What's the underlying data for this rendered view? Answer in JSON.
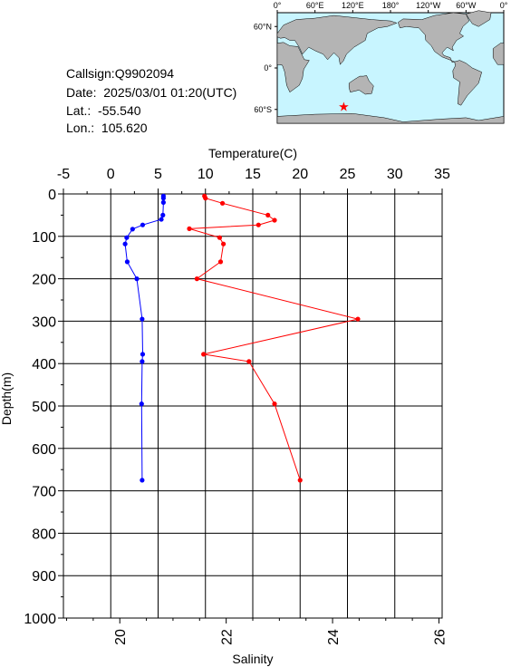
{
  "info": {
    "callsign_label": "Callsign:",
    "callsign": "Q9902094",
    "date_label": "Date:",
    "date": "2025/03/01 01:20(UTC)",
    "lat_label": "Lat.:",
    "lat": "-55.540",
    "lon_label": "Lon.:",
    "lon": "105.620"
  },
  "map": {
    "top_tick_labels": [
      "0°",
      "60°E",
      "120°E",
      "180°",
      "120°W",
      "60°W",
      "0°"
    ],
    "left_tick_labels": [
      "60°N",
      "0°",
      "60°S"
    ],
    "ocean_color": "#c8f5ff",
    "land_color": "#b4b4b4",
    "marker": {
      "lon": 105.62,
      "lat": -55.54,
      "symbol": "star-icon",
      "color": "#ff0000"
    }
  },
  "chart_data": {
    "type": "line",
    "y_axis": {
      "label": "Depth(m)",
      "range": [
        0,
        1000
      ],
      "reversed": true,
      "ticks": [
        0,
        100,
        200,
        300,
        400,
        500,
        600,
        700,
        800,
        900,
        1000
      ],
      "tick_labels": [
        "0",
        "100",
        "200",
        "300",
        "400",
        "500",
        "600",
        "700",
        "800",
        "900",
        "1000"
      ]
    },
    "temperature_axis": {
      "label": "Temperature(C)",
      "position": "top",
      "range": [
        -5,
        35
      ],
      "ticks": [
        -5,
        0,
        5,
        10,
        15,
        20,
        25,
        30,
        35
      ],
      "tick_labels": [
        "-5",
        "0",
        "5",
        "10",
        "15",
        "20",
        "25",
        "30",
        "35"
      ]
    },
    "salinity_axis": {
      "label": "Salinity",
      "position": "bottom",
      "range": [
        18.94,
        26.06
      ],
      "ticks": [
        20,
        22,
        24,
        26
      ],
      "tick_labels": [
        "20",
        "22",
        "24",
        "26"
      ]
    },
    "grid": true,
    "series": [
      {
        "axis": "temperature",
        "color": "#ff0000",
        "points": [
          {
            "depth": 5,
            "value": 9.9
          },
          {
            "depth": 10,
            "value": 10.0
          },
          {
            "depth": 22,
            "value": 11.8
          },
          {
            "depth": 50,
            "value": 16.6
          },
          {
            "depth": 62,
            "value": 17.3
          },
          {
            "depth": 73,
            "value": 15.6
          },
          {
            "depth": 82,
            "value": 8.3
          },
          {
            "depth": 103,
            "value": 11.5
          },
          {
            "depth": 118,
            "value": 11.9
          },
          {
            "depth": 160,
            "value": 11.6
          },
          {
            "depth": 200,
            "value": 9.1
          },
          {
            "depth": 295,
            "value": 26.1
          },
          {
            "depth": 378,
            "value": 9.8
          },
          {
            "depth": 395,
            "value": 14.6
          },
          {
            "depth": 495,
            "value": 17.3
          },
          {
            "depth": 675,
            "value": 20.0
          }
        ]
      },
      {
        "axis": "salinity",
        "color": "#0000ff",
        "points": [
          {
            "depth": 5,
            "value": 20.82
          },
          {
            "depth": 10,
            "value": 20.82
          },
          {
            "depth": 20,
            "value": 20.82
          },
          {
            "depth": 50,
            "value": 20.81
          },
          {
            "depth": 60,
            "value": 20.78
          },
          {
            "depth": 73,
            "value": 20.43
          },
          {
            "depth": 83,
            "value": 20.24
          },
          {
            "depth": 103,
            "value": 20.13
          },
          {
            "depth": 118,
            "value": 20.1
          },
          {
            "depth": 160,
            "value": 20.14
          },
          {
            "depth": 200,
            "value": 20.32
          },
          {
            "depth": 295,
            "value": 20.42
          },
          {
            "depth": 378,
            "value": 20.43
          },
          {
            "depth": 395,
            "value": 20.42
          },
          {
            "depth": 495,
            "value": 20.41
          },
          {
            "depth": 675,
            "value": 20.42
          }
        ]
      }
    ]
  }
}
